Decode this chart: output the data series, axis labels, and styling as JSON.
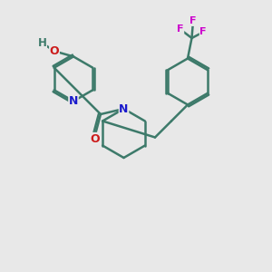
{
  "background_color": "#e8e8e8",
  "bond_color": "#3d7a6a",
  "bond_width": 1.8,
  "N_color": "#1a1acc",
  "O_color": "#cc1a1a",
  "F_color": "#cc00cc",
  "H_color": "#3d7a6a",
  "figsize": [
    3.0,
    3.0
  ],
  "dpi": 100,
  "xlim": [
    0,
    10
  ],
  "ylim": [
    0,
    10
  ]
}
